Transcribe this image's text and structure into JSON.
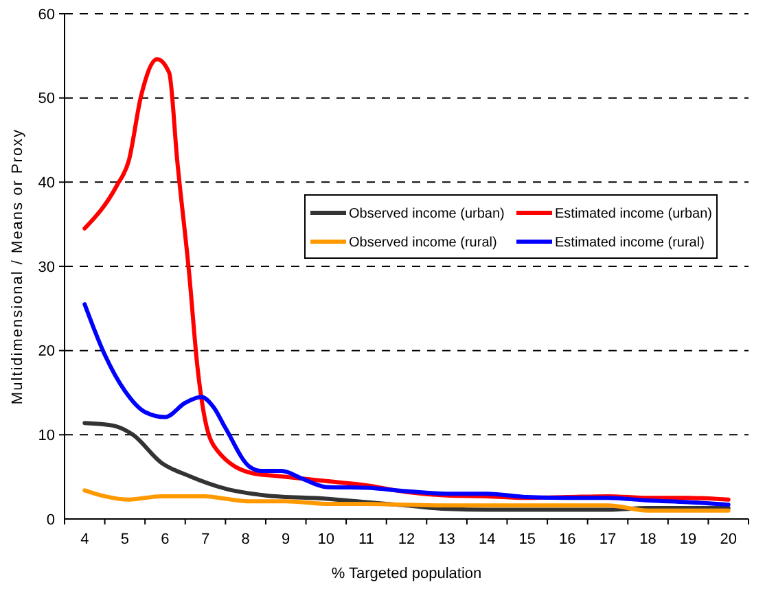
{
  "chart_data": {
    "type": "line",
    "xlabel": "% Targeted population",
    "ylabel": "Multidimensional / Means or Proxy",
    "xlim": [
      3.5,
      20.5
    ],
    "xticks": [
      {
        "value": 3.5,
        "label": null
      },
      4,
      {
        "value": 4.5,
        "label": null
      },
      5,
      {
        "value": 5.5,
        "label": null
      },
      6,
      {
        "value": 6.5,
        "label": null
      },
      7,
      {
        "value": 7.5,
        "label": null
      },
      8,
      {
        "value": 8.5,
        "label": null
      },
      9,
      {
        "value": 9.5,
        "label": null
      },
      10,
      {
        "value": 10.5,
        "label": null
      },
      11,
      {
        "value": 11.5,
        "label": null
      },
      12,
      {
        "value": 12.5,
        "label": null
      },
      13,
      {
        "value": 13.5,
        "label": null
      },
      14,
      {
        "value": 14.5,
        "label": null
      },
      15,
      {
        "value": 15.5,
        "label": null
      },
      16,
      {
        "value": 16.5,
        "label": null
      },
      17,
      {
        "value": 17.5,
        "label": null
      },
      18,
      {
        "value": 18.5,
        "label": null
      },
      19,
      {
        "value": 19.5,
        "label": null
      },
      20,
      {
        "value": 20.5,
        "label": null
      }
    ],
    "ylim": [
      0,
      60
    ],
    "yticks": [
      0,
      10,
      20,
      30,
      40,
      50,
      60
    ],
    "grid": "y",
    "legend": "right",
    "line_style": "solid",
    "marker": "none",
    "series": [
      {
        "name": "Observed income (urban)",
        "color": "#333333",
        "x": [
          4,
          4.7,
          5.2,
          5.9,
          6.6,
          7.5,
          8.5,
          10,
          11,
          12,
          13,
          14,
          15,
          16,
          17,
          18,
          19,
          20
        ],
        "values": [
          11.4,
          11.1,
          10,
          6.7,
          5.1,
          3.6,
          2.8,
          2.4,
          2,
          1.6,
          1.2,
          1.1,
          1.1,
          1.1,
          1.1,
          1.3,
          1.3,
          1.3
        ]
      },
      {
        "name": "Estimated income (urban)",
        "color": "#ff0000",
        "x": [
          4,
          4.8,
          5.1,
          5.4,
          5.8,
          6.1,
          6.3,
          6.6,
          6.8,
          7,
          7.3,
          8.2,
          8.8,
          10,
          11,
          12,
          13,
          14,
          15,
          16,
          17,
          18,
          19,
          20
        ],
        "values": [
          34.5,
          39.6,
          42.6,
          50.2,
          54.6,
          53,
          42.6,
          29,
          18.2,
          11.6,
          8.1,
          5.4,
          5.1,
          4.5,
          4,
          3.2,
          2.8,
          2.7,
          2.5,
          2.6,
          2.7,
          2.5,
          2.5,
          2.3
        ]
      },
      {
        "name": "Observed income (rural)",
        "color": "#ff9900",
        "x": [
          4,
          4.5,
          5.1,
          5.9,
          7,
          7.5,
          8.1,
          9,
          10,
          11,
          12,
          13,
          14,
          15,
          16,
          17,
          18,
          19,
          20
        ],
        "values": [
          3.4,
          2.7,
          2.3,
          2.7,
          2.7,
          2.4,
          2.1,
          2.1,
          1.8,
          1.8,
          1.7,
          1.6,
          1.6,
          1.6,
          1.6,
          1.6,
          1,
          1,
          1
        ]
      },
      {
        "name": "Estimated income (rural)",
        "color": "#0000ff",
        "x": [
          4,
          4.5,
          5,
          5.5,
          6,
          6.5,
          6.9,
          7.2,
          7.5,
          8.1,
          8.4,
          8.9,
          9.4,
          10,
          11,
          12,
          13,
          14,
          15,
          16,
          17,
          18,
          19,
          20
        ],
        "values": [
          25.5,
          19.5,
          15.2,
          12.7,
          12.1,
          13.8,
          14.5,
          13.3,
          10.8,
          6.2,
          5.7,
          5.7,
          4.8,
          3.8,
          3.7,
          3.3,
          3,
          3,
          2.6,
          2.5,
          2.5,
          2.2,
          2,
          1.7
        ]
      }
    ]
  }
}
